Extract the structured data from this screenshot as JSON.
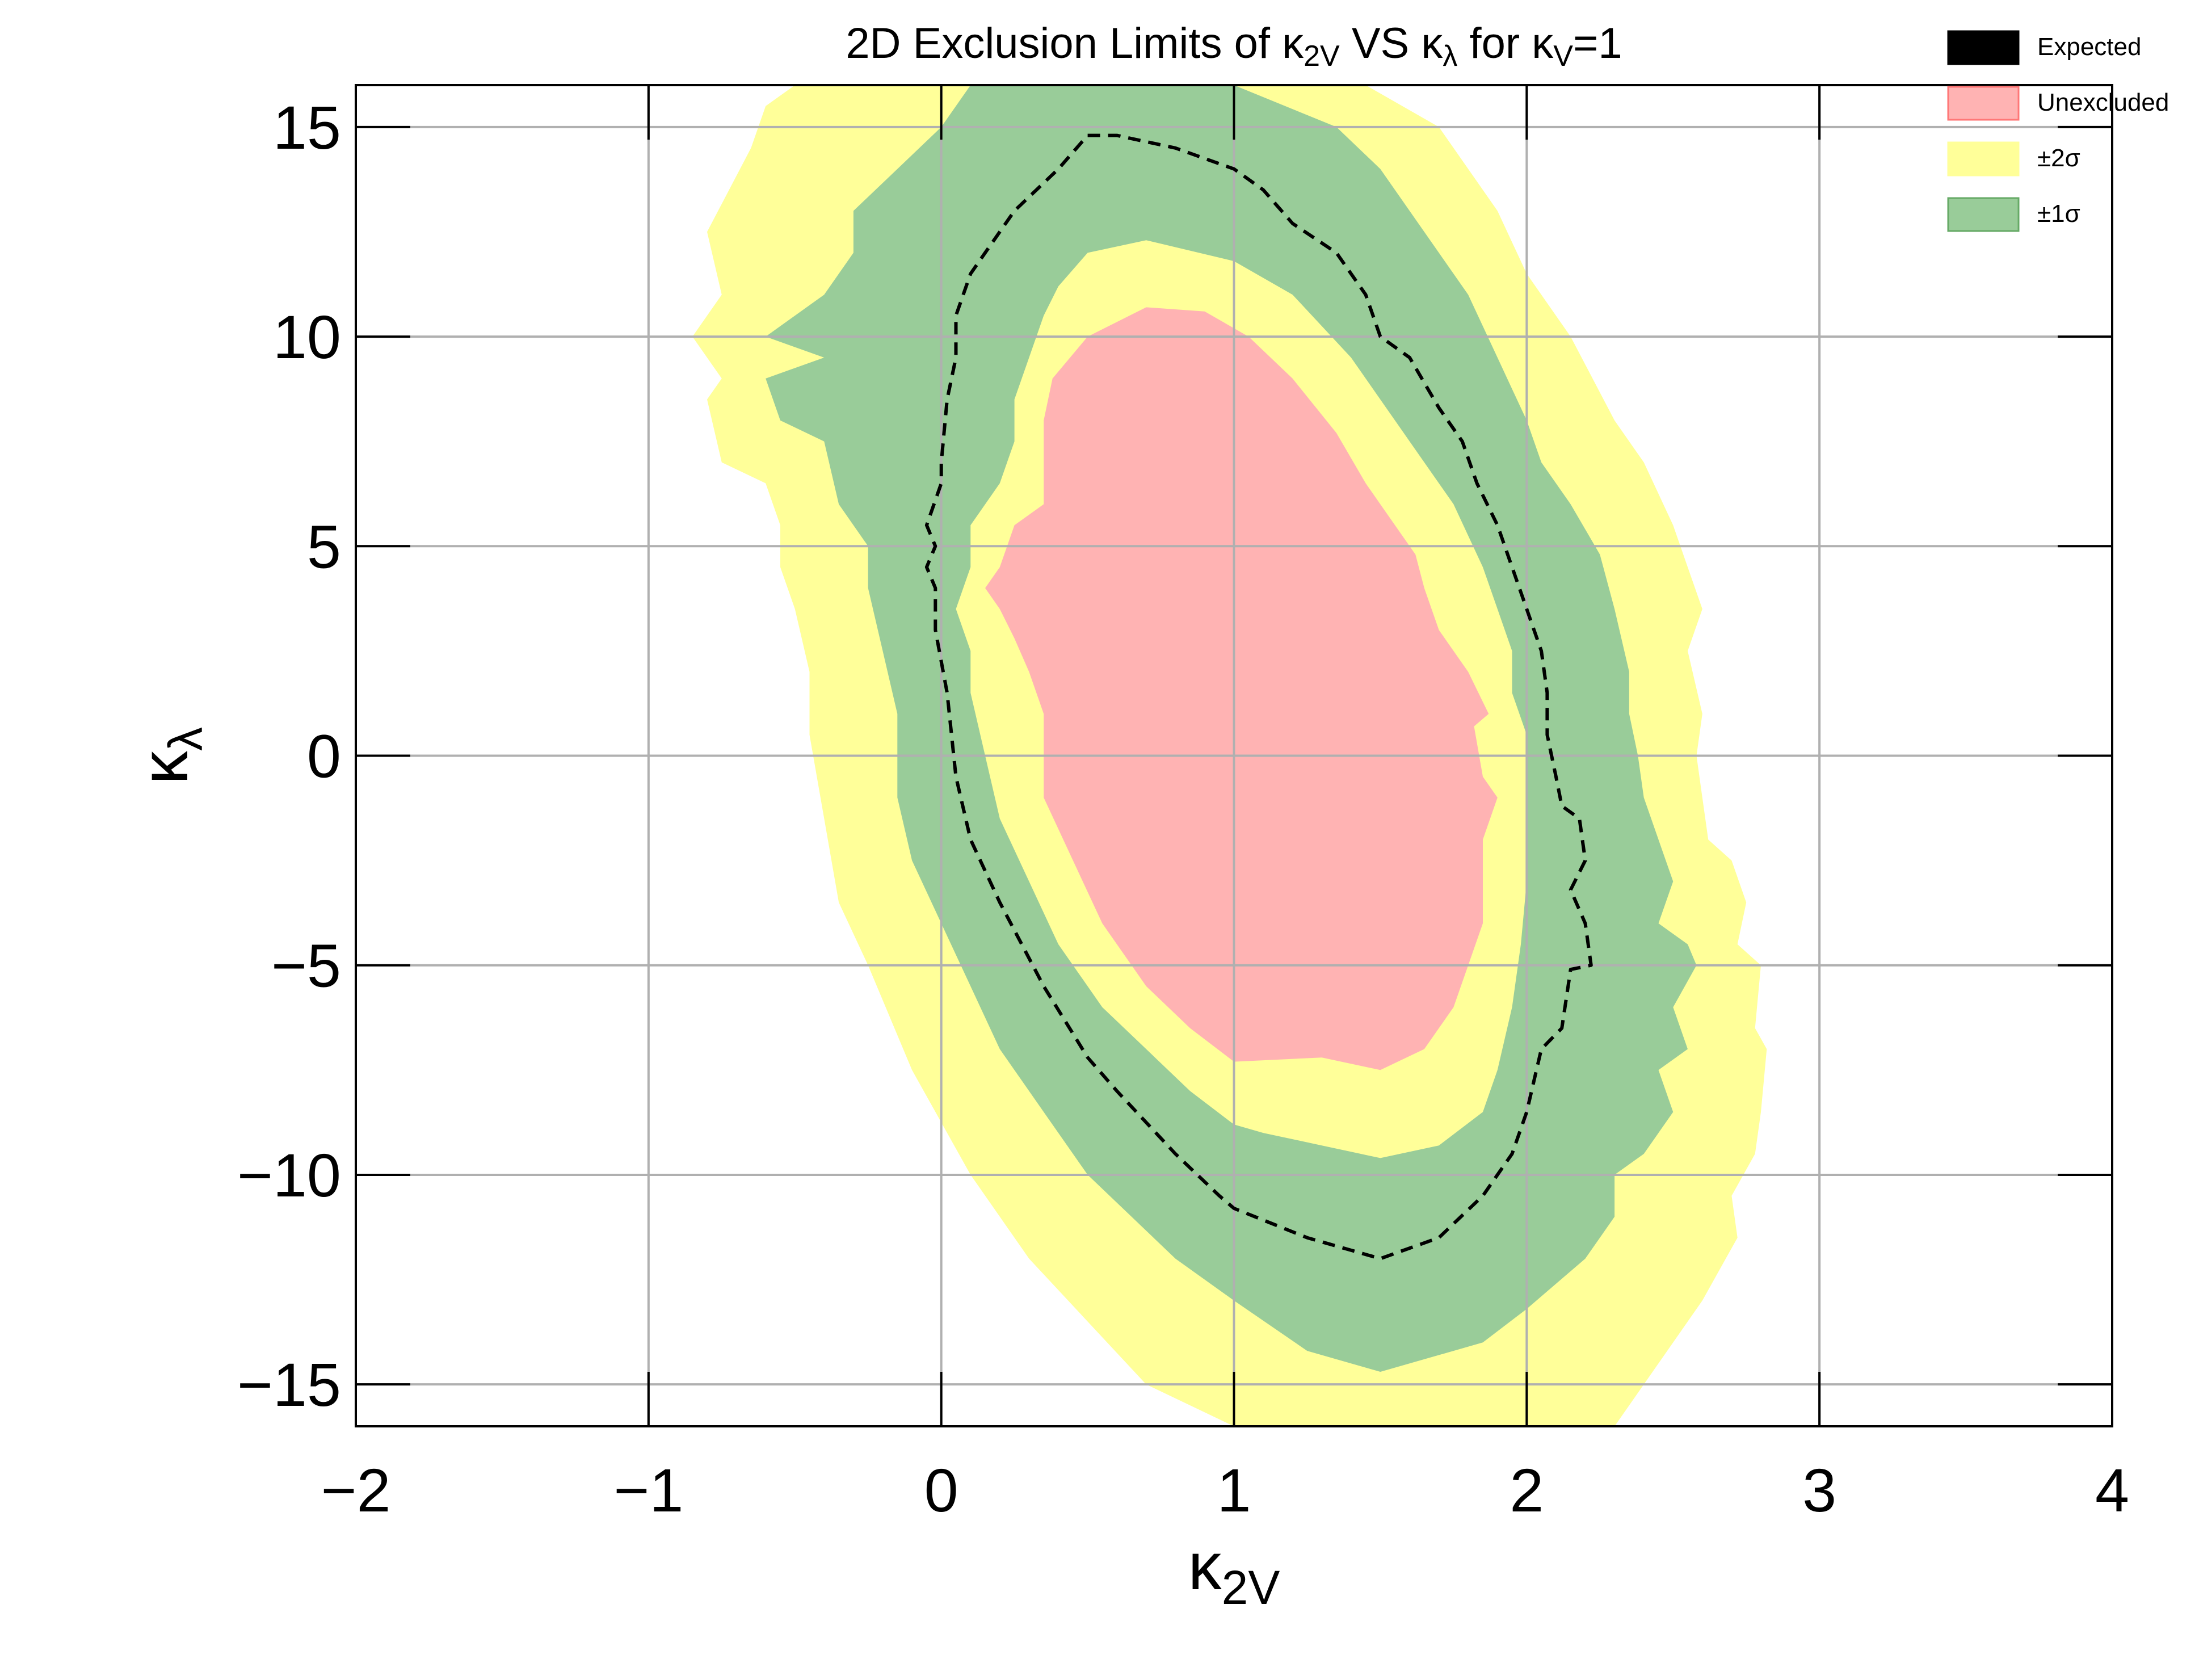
{
  "chart_data": {
    "type": "contour",
    "title": "2D Exclusion Limits of κ₂ᵥ VS κλ for κᵥ=1",
    "title_parts": {
      "prefix": "2D Exclusion Limits of ",
      "k1": "κ",
      "k1_sub": "2V",
      "mid": " VS ",
      "k2": "κ",
      "k2_sub": "λ",
      "mid2": " for ",
      "k3": "κ",
      "k3_sub": "V",
      "suffix": "=1"
    },
    "xlabel": "κ2V",
    "xlabel_parts": {
      "main": "κ",
      "sub": "2V"
    },
    "ylabel": "κλ",
    "ylabel_parts": {
      "main": "κ",
      "sub": "λ"
    },
    "xlim": [
      -2,
      4
    ],
    "ylim": [
      -16,
      16
    ],
    "xticks": [
      -2,
      -1,
      0,
      1,
      2,
      3,
      4
    ],
    "xtick_labels": [
      "−2",
      "−1",
      "0",
      "1",
      "2",
      "3",
      "4"
    ],
    "yticks": [
      -15,
      -10,
      -5,
      0,
      5,
      10,
      15
    ],
    "ytick_labels": [
      "−15",
      "−10",
      "−5",
      "0",
      "5",
      "10",
      "15"
    ],
    "grid": true,
    "legend_position": "top-right",
    "legend": [
      {
        "label": "Expected",
        "color": "#000000"
      },
      {
        "label": "Unexcluded",
        "color": "#ffb3b3"
      },
      {
        "label": "±2σ",
        "color": "#ffff99"
      },
      {
        "label": "±1σ",
        "color": "#99cc99"
      }
    ],
    "regions": [
      {
        "name": "±2σ",
        "color": "#ffff99",
        "points": [
          [
            0.5,
            16
          ],
          [
            0.6,
            16
          ],
          [
            0.8,
            16
          ],
          [
            1.0,
            16
          ],
          [
            1.2,
            16
          ],
          [
            1.45,
            16
          ],
          [
            1.7,
            15.0
          ],
          [
            1.9,
            13.0
          ],
          [
            2.0,
            11.5
          ],
          [
            2.15,
            10.0
          ],
          [
            2.3,
            8.0
          ],
          [
            2.4,
            7.0
          ],
          [
            2.5,
            5.5
          ],
          [
            2.55,
            4.5
          ],
          [
            2.6,
            3.5
          ],
          [
            2.55,
            2.5
          ],
          [
            2.6,
            1.0
          ],
          [
            2.58,
            0.0
          ],
          [
            2.6,
            -1.0
          ],
          [
            2.62,
            -2.0
          ],
          [
            2.7,
            -2.5
          ],
          [
            2.75,
            -3.5
          ],
          [
            2.72,
            -4.5
          ],
          [
            2.8,
            -5.0
          ],
          [
            2.78,
            -6.5
          ],
          [
            2.82,
            -7.0
          ],
          [
            2.8,
            -8.5
          ],
          [
            2.78,
            -9.5
          ],
          [
            2.7,
            -10.5
          ],
          [
            2.72,
            -11.5
          ],
          [
            2.6,
            -13.0
          ],
          [
            2.45,
            -14.5
          ],
          [
            2.35,
            -15.5
          ],
          [
            2.3,
            -16
          ],
          [
            2.0,
            -16
          ],
          [
            1.5,
            -16
          ],
          [
            1.0,
            -16
          ],
          [
            0.7,
            -15.0
          ],
          [
            0.3,
            -12.0
          ],
          [
            0.1,
            -10.0
          ],
          [
            -0.1,
            -7.5
          ],
          [
            -0.25,
            -5.0
          ],
          [
            -0.35,
            -3.5
          ],
          [
            -0.4,
            -1.5
          ],
          [
            -0.45,
            0.5
          ],
          [
            -0.45,
            2.0
          ],
          [
            -0.5,
            3.5
          ],
          [
            -0.55,
            4.5
          ],
          [
            -0.55,
            5.5
          ],
          [
            -0.6,
            6.5
          ],
          [
            -0.75,
            7.0
          ],
          [
            -0.8,
            8.5
          ],
          [
            -0.75,
            9.0
          ],
          [
            -0.85,
            10.0
          ],
          [
            -0.75,
            11.0
          ],
          [
            -0.8,
            12.5
          ],
          [
            -0.65,
            14.5
          ],
          [
            -0.6,
            15.5
          ],
          [
            -0.5,
            16
          ],
          [
            -0.3,
            16
          ],
          [
            0.0,
            16
          ],
          [
            0.5,
            16
          ]
        ]
      },
      {
        "name": "±1σ",
        "color": "#99cc99",
        "points": [
          [
            0.1,
            16
          ],
          [
            0.5,
            16
          ],
          [
            1.0,
            16
          ],
          [
            1.35,
            15.0
          ],
          [
            1.5,
            14.0
          ],
          [
            1.65,
            12.5
          ],
          [
            1.8,
            11.0
          ],
          [
            1.9,
            9.5
          ],
          [
            2.0,
            8.0
          ],
          [
            2.05,
            7.0
          ],
          [
            2.15,
            6.0
          ],
          [
            2.25,
            4.8
          ],
          [
            2.3,
            3.5
          ],
          [
            2.35,
            2.0
          ],
          [
            2.35,
            1.0
          ],
          [
            2.38,
            0.0
          ],
          [
            2.4,
            -1.0
          ],
          [
            2.45,
            -2.0
          ],
          [
            2.5,
            -3.0
          ],
          [
            2.45,
            -4.0
          ],
          [
            2.55,
            -4.5
          ],
          [
            2.58,
            -5.0
          ],
          [
            2.5,
            -6.0
          ],
          [
            2.55,
            -7.0
          ],
          [
            2.45,
            -7.5
          ],
          [
            2.5,
            -8.5
          ],
          [
            2.4,
            -9.5
          ],
          [
            2.3,
            -10.0
          ],
          [
            2.3,
            -11.0
          ],
          [
            2.2,
            -12.0
          ],
          [
            2.0,
            -13.2
          ],
          [
            1.85,
            -14.0
          ],
          [
            1.5,
            -14.7
          ],
          [
            1.25,
            -14.2
          ],
          [
            1.0,
            -13.0
          ],
          [
            0.8,
            -12.0
          ],
          [
            0.65,
            -11.0
          ],
          [
            0.5,
            -10.0
          ],
          [
            0.35,
            -8.5
          ],
          [
            0.2,
            -7.0
          ],
          [
            0.1,
            -5.5
          ],
          [
            0.0,
            -4.0
          ],
          [
            -0.1,
            -2.5
          ],
          [
            -0.15,
            -1.0
          ],
          [
            -0.15,
            1.0
          ],
          [
            -0.2,
            2.5
          ],
          [
            -0.25,
            4.0
          ],
          [
            -0.25,
            5.0
          ],
          [
            -0.35,
            6.0
          ],
          [
            -0.4,
            7.5
          ],
          [
            -0.55,
            8.0
          ],
          [
            -0.6,
            9.0
          ],
          [
            -0.4,
            9.5
          ],
          [
            -0.6,
            10.0
          ],
          [
            -0.4,
            11.0
          ],
          [
            -0.3,
            12.0
          ],
          [
            -0.3,
            13.0
          ],
          [
            -0.15,
            14.0
          ],
          [
            0.0,
            15.0
          ],
          [
            0.1,
            16
          ]
        ]
      },
      {
        "name": "±2σ (inner)",
        "color": "#ffff99",
        "points": [
          [
            0.5,
            12.0
          ],
          [
            0.7,
            12.3
          ],
          [
            1.0,
            11.8
          ],
          [
            1.2,
            11.0
          ],
          [
            1.4,
            9.5
          ],
          [
            1.6,
            7.5
          ],
          [
            1.75,
            6.0
          ],
          [
            1.85,
            4.5
          ],
          [
            1.9,
            3.5
          ],
          [
            1.95,
            2.5
          ],
          [
            1.95,
            1.5
          ],
          [
            2.0,
            0.5
          ],
          [
            2.0,
            -0.5
          ],
          [
            2.0,
            -1.5
          ],
          [
            2.0,
            -3.0
          ],
          [
            1.98,
            -4.5
          ],
          [
            1.95,
            -6.0
          ],
          [
            1.9,
            -7.5
          ],
          [
            1.85,
            -8.5
          ],
          [
            1.7,
            -9.3
          ],
          [
            1.5,
            -9.6
          ],
          [
            1.3,
            -9.3
          ],
          [
            1.1,
            -9.0
          ],
          [
            1.0,
            -8.8
          ],
          [
            0.85,
            -8.0
          ],
          [
            0.7,
            -7.0
          ],
          [
            0.55,
            -6.0
          ],
          [
            0.4,
            -4.5
          ],
          [
            0.3,
            -3.0
          ],
          [
            0.2,
            -1.5
          ],
          [
            0.15,
            0.0
          ],
          [
            0.1,
            1.5
          ],
          [
            0.1,
            2.5
          ],
          [
            0.05,
            3.5
          ],
          [
            0.1,
            4.5
          ],
          [
            0.1,
            5.5
          ],
          [
            0.2,
            6.5
          ],
          [
            0.25,
            7.5
          ],
          [
            0.25,
            8.5
          ],
          [
            0.3,
            9.5
          ],
          [
            0.35,
            10.5
          ],
          [
            0.4,
            11.2
          ],
          [
            0.5,
            12.0
          ]
        ]
      },
      {
        "name": "Unexcluded",
        "color": "#ffb3b3",
        "points": [
          [
            0.7,
            10.7
          ],
          [
            0.9,
            10.6
          ],
          [
            1.05,
            10.0
          ],
          [
            1.2,
            9.0
          ],
          [
            1.35,
            7.7
          ],
          [
            1.45,
            6.5
          ],
          [
            1.55,
            5.5
          ],
          [
            1.62,
            4.8
          ],
          [
            1.65,
            4.0
          ],
          [
            1.7,
            3.0
          ],
          [
            1.8,
            2.0
          ],
          [
            1.87,
            1.0
          ],
          [
            1.82,
            0.7
          ],
          [
            1.85,
            -0.5
          ],
          [
            1.9,
            -1.0
          ],
          [
            1.85,
            -2.0
          ],
          [
            1.85,
            -3.0
          ],
          [
            1.85,
            -4.0
          ],
          [
            1.8,
            -5.0
          ],
          [
            1.75,
            -6.0
          ],
          [
            1.65,
            -7.0
          ],
          [
            1.5,
            -7.5
          ],
          [
            1.3,
            -7.2
          ],
          [
            1.0,
            -7.3
          ],
          [
            0.85,
            -6.5
          ],
          [
            0.7,
            -5.5
          ],
          [
            0.55,
            -4.0
          ],
          [
            0.45,
            -2.5
          ],
          [
            0.35,
            -1.0
          ],
          [
            0.35,
            0.0
          ],
          [
            0.35,
            1.0
          ],
          [
            0.3,
            2.0
          ],
          [
            0.25,
            2.8
          ],
          [
            0.2,
            3.5
          ],
          [
            0.15,
            4.0
          ],
          [
            0.2,
            4.5
          ],
          [
            0.25,
            5.5
          ],
          [
            0.35,
            6.0
          ],
          [
            0.35,
            7.0
          ],
          [
            0.35,
            8.0
          ],
          [
            0.38,
            9.0
          ],
          [
            0.5,
            10.0
          ],
          [
            0.7,
            10.7
          ]
        ]
      }
    ],
    "expected_contour": {
      "name": "Expected",
      "color": "#000000",
      "style": "dashed",
      "points": [
        [
          0.5,
          14.8
        ],
        [
          0.6,
          14.8
        ],
        [
          0.8,
          14.5
        ],
        [
          1.0,
          14.0
        ],
        [
          1.1,
          13.5
        ],
        [
          1.2,
          12.7
        ],
        [
          1.35,
          12.0
        ],
        [
          1.45,
          11.0
        ],
        [
          1.5,
          10.0
        ],
        [
          1.6,
          9.5
        ],
        [
          1.7,
          8.3
        ],
        [
          1.78,
          7.5
        ],
        [
          1.83,
          6.5
        ],
        [
          1.9,
          5.5
        ],
        [
          1.95,
          4.5
        ],
        [
          2.0,
          3.5
        ],
        [
          2.05,
          2.5
        ],
        [
          2.07,
          1.5
        ],
        [
          2.07,
          0.5
        ],
        [
          2.1,
          -0.5
        ],
        [
          2.12,
          -1.2
        ],
        [
          2.18,
          -1.5
        ],
        [
          2.2,
          -2.5
        ],
        [
          2.15,
          -3.2
        ],
        [
          2.2,
          -4.0
        ],
        [
          2.22,
          -5.0
        ],
        [
          2.15,
          -5.1
        ],
        [
          2.12,
          -6.5
        ],
        [
          2.05,
          -7.0
        ],
        [
          2.0,
          -8.5
        ],
        [
          1.95,
          -9.5
        ],
        [
          1.85,
          -10.5
        ],
        [
          1.7,
          -11.5
        ],
        [
          1.5,
          -12.0
        ],
        [
          1.25,
          -11.5
        ],
        [
          1.0,
          -10.8
        ],
        [
          0.95,
          -10.5
        ],
        [
          0.8,
          -9.5
        ],
        [
          0.6,
          -8.0
        ],
        [
          0.5,
          -7.2
        ],
        [
          0.35,
          -5.5
        ],
        [
          0.2,
          -3.5
        ],
        [
          0.1,
          -2.0
        ],
        [
          0.05,
          -0.5
        ],
        [
          0.02,
          1.5
        ],
        [
          -0.02,
          3.0
        ],
        [
          -0.02,
          4.0
        ],
        [
          -0.05,
          4.5
        ],
        [
          -0.02,
          5.0
        ],
        [
          -0.05,
          5.5
        ],
        [
          0.0,
          6.5
        ],
        [
          0.0,
          7.0
        ],
        [
          0.02,
          8.5
        ],
        [
          0.05,
          9.5
        ],
        [
          0.05,
          10.5
        ],
        [
          0.1,
          11.5
        ],
        [
          0.15,
          12.0
        ],
        [
          0.25,
          13.0
        ],
        [
          0.4,
          14.0
        ],
        [
          0.5,
          14.8
        ]
      ]
    }
  }
}
